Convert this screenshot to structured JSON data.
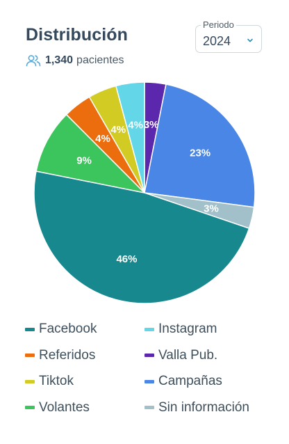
{
  "header": {
    "title": "Distribución",
    "patients_count": "1,340",
    "patients_label": "pacientes",
    "period_label": "Periodo",
    "period_value": "2024"
  },
  "colors": {
    "Facebook": "#18888f",
    "Instagram": "#63d6e7",
    "Referidos": "#ec6d0e",
    "Valla Pub.": "#5b27ad",
    "Tiktok": "#d2cb24",
    "Campañas": "#4a86e5",
    "Volantes": "#3cc55d",
    "Sin información": "#a1c0c9"
  },
  "chart_data": {
    "type": "pie",
    "slices": [
      {
        "name": "Valla Pub.",
        "value": 3,
        "label": "3%"
      },
      {
        "name": "Campañas",
        "value": 23,
        "label": "23%"
      },
      {
        "name": "Sin información",
        "value": 3,
        "label": "3%"
      },
      {
        "name": "Facebook",
        "value": 46,
        "label": "46%"
      },
      {
        "name": "Volantes",
        "value": 9,
        "label": "9%"
      },
      {
        "name": "Referidos",
        "value": 4,
        "label": "4%"
      },
      {
        "name": "Tiktok",
        "value": 4,
        "label": "4%"
      },
      {
        "name": "Instagram",
        "value": 4,
        "label": "4%"
      }
    ],
    "legend": [
      "Facebook",
      "Instagram",
      "Referidos",
      "Valla Pub.",
      "Tiktok",
      "Campañas",
      "Volantes",
      "Sin información"
    ],
    "legend_position": "bottom"
  }
}
